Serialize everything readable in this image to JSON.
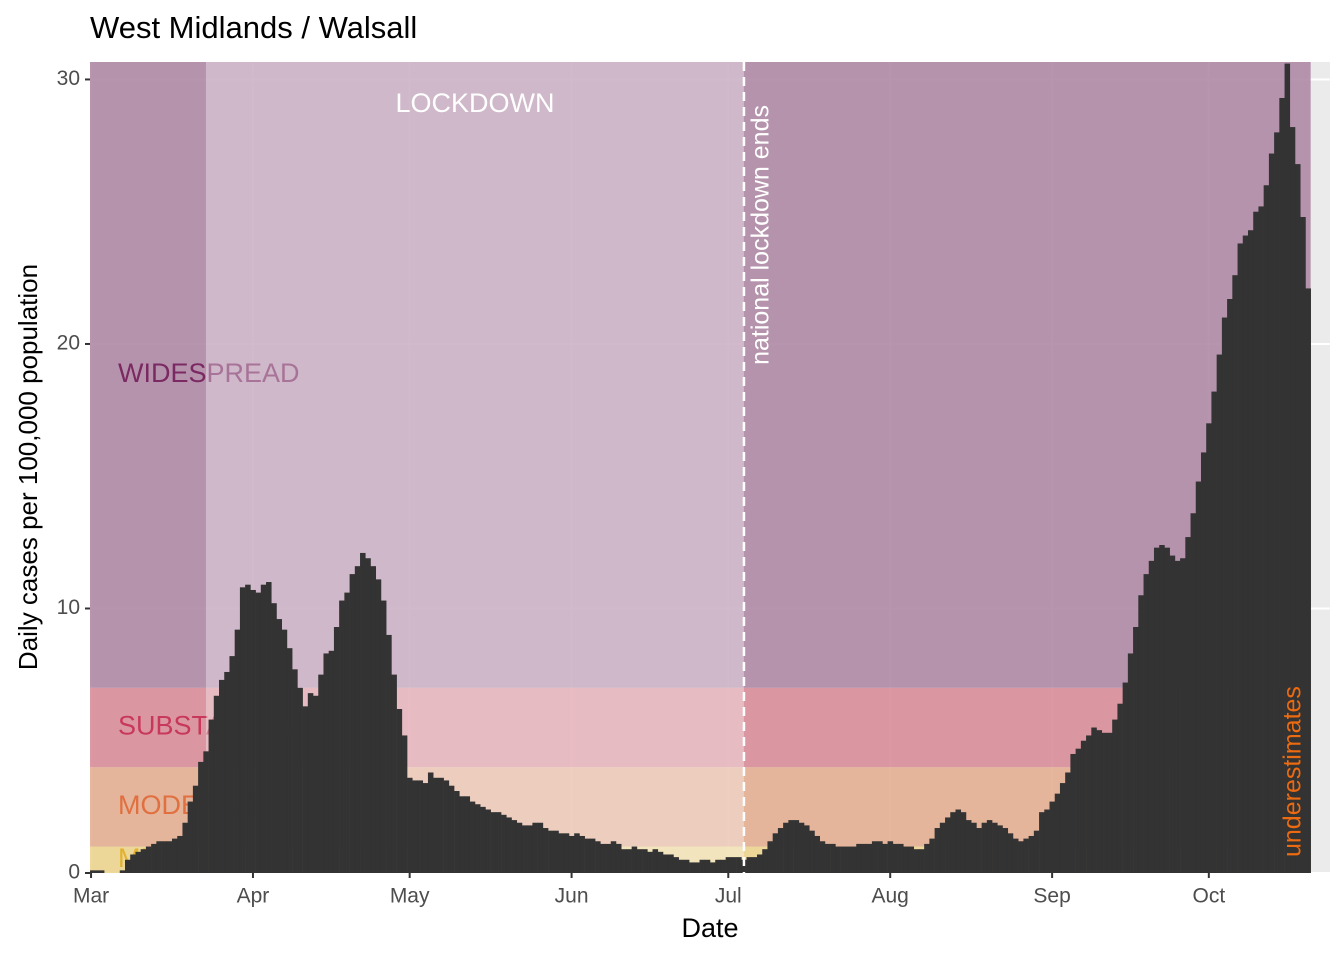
{
  "chart_data": {
    "type": "bar",
    "title": "West Midlands / Walsall",
    "x_label": "Date",
    "y_label": "Daily cases per 100,000 population",
    "color": "#333333",
    "x": [
      0,
      1,
      2,
      3,
      4,
      5,
      6,
      7,
      8,
      9,
      10,
      11,
      12,
      13,
      14,
      15,
      16,
      17,
      18,
      19,
      20,
      21,
      22,
      23,
      24,
      25,
      26,
      27,
      28,
      29,
      30,
      31,
      32,
      33,
      34,
      35,
      36,
      37,
      38,
      39,
      40,
      41,
      42,
      43,
      44,
      45,
      46,
      47,
      48,
      49,
      50,
      51,
      52,
      53,
      54,
      55,
      56,
      57,
      58,
      59,
      60,
      61,
      62,
      63,
      64,
      65,
      66,
      67,
      68,
      69,
      70,
      71,
      72,
      73,
      74,
      75,
      76,
      77,
      78,
      79,
      80,
      81,
      82,
      83,
      84,
      85,
      86,
      87,
      88,
      89,
      90,
      91,
      92,
      93,
      94,
      95,
      96,
      97,
      98,
      99,
      100,
      101,
      102,
      103,
      104,
      105,
      106,
      107,
      108,
      109,
      110,
      111,
      112,
      113,
      114,
      115,
      116,
      117,
      118,
      119,
      120,
      121,
      122,
      123,
      124,
      125,
      126,
      127,
      128,
      129,
      130,
      131,
      132,
      133,
      134,
      135,
      136,
      137,
      138,
      139,
      140,
      141,
      142,
      143,
      144,
      145,
      146,
      147,
      148,
      149,
      150,
      151,
      152,
      153,
      154,
      155,
      156,
      157,
      158,
      159,
      160,
      161,
      162,
      163,
      164,
      165,
      166,
      167,
      168,
      169,
      170,
      171,
      172,
      173,
      174,
      175,
      176,
      177,
      178,
      179,
      180,
      181,
      182,
      183,
      184,
      185,
      186,
      187,
      188,
      189,
      190,
      191,
      192,
      193,
      194,
      195,
      196,
      197,
      198,
      199,
      200,
      201,
      202,
      203,
      204,
      205,
      206,
      207,
      208,
      209,
      210,
      211,
      212,
      213,
      214,
      215,
      216,
      217,
      218,
      219,
      220,
      221,
      222,
      223,
      224,
      225,
      226,
      227,
      228,
      229,
      230,
      231,
      232,
      233
    ],
    "values": [
      0.1,
      0.1,
      0.1,
      0,
      0,
      0,
      0.1,
      0.5,
      0.7,
      0.8,
      0.9,
      1.0,
      1.1,
      1.2,
      1.2,
      1.2,
      1.3,
      1.4,
      1.9,
      2.7,
      3.3,
      4.2,
      4.6,
      5.8,
      6.7,
      7.3,
      7.6,
      8.2,
      9.2,
      10.8,
      10.9,
      10.7,
      10.6,
      10.9,
      11.0,
      10.2,
      9.6,
      9.2,
      8.5,
      7.7,
      7.0,
      6.3,
      6.8,
      6.7,
      7.5,
      8.3,
      8.4,
      9.3,
      10.3,
      10.6,
      11.3,
      11.6,
      12.1,
      11.9,
      11.6,
      11.1,
      10.3,
      9.0,
      7.5,
      6.2,
      5.2,
      3.6,
      3.5,
      3.5,
      3.4,
      3.8,
      3.6,
      3.6,
      3.5,
      3.3,
      3.1,
      2.9,
      2.9,
      2.7,
      2.6,
      2.5,
      2.4,
      2.3,
      2.3,
      2.2,
      2.1,
      2.0,
      1.9,
      1.8,
      1.8,
      1.9,
      1.9,
      1.7,
      1.6,
      1.6,
      1.5,
      1.5,
      1.4,
      1.5,
      1.4,
      1.3,
      1.3,
      1.2,
      1.1,
      1.1,
      1.2,
      1.1,
      0.9,
      0.9,
      1.0,
      0.9,
      0.9,
      0.8,
      0.9,
      0.8,
      0.7,
      0.7,
      0.6,
      0.5,
      0.5,
      0.4,
      0.4,
      0.5,
      0.5,
      0.4,
      0.5,
      0.5,
      0.6,
      0.6,
      0.6,
      0.5,
      0.6,
      0.6,
      0.7,
      0.9,
      1.2,
      1.5,
      1.7,
      1.9,
      2.0,
      2.0,
      1.9,
      1.8,
      1.6,
      1.4,
      1.2,
      1.1,
      1.1,
      1.0,
      1.0,
      1.0,
      1.0,
      1.1,
      1.1,
      1.1,
      1.2,
      1.2,
      1.1,
      1.2,
      1.1,
      1.1,
      1.0,
      1.0,
      0.9,
      0.9,
      1.1,
      1.3,
      1.7,
      1.9,
      2.1,
      2.3,
      2.4,
      2.3,
      2.0,
      1.9,
      1.7,
      1.9,
      2.0,
      1.9,
      1.8,
      1.7,
      1.5,
      1.3,
      1.2,
      1.3,
      1.4,
      1.6,
      2.3,
      2.4,
      2.7,
      3.0,
      3.4,
      3.8,
      4.5,
      4.7,
      5.0,
      5.2,
      5.5,
      5.4,
      5.3,
      5.3,
      5.8,
      6.4,
      7.2,
      8.3,
      9.3,
      10.5,
      11.3,
      11.8,
      12.3,
      12.4,
      12.3,
      12.0,
      11.8,
      11.9,
      12.7,
      13.6,
      14.8,
      15.9,
      17.0,
      18.2,
      19.6,
      21.0,
      21.7,
      22.6,
      23.8,
      24.1,
      24.3,
      25.0,
      25.2,
      26.0,
      27.2,
      28.0,
      29.3,
      30.6,
      28.2,
      26.8,
      24.8,
      22.1
    ],
    "xlim": [
      -0.2,
      237.2
    ],
    "ylim": [
      0,
      30.66
    ],
    "xticks": [
      {
        "value": 0,
        "label": "Mar"
      },
      {
        "value": 31,
        "label": "Apr"
      },
      {
        "value": 61,
        "label": "May"
      },
      {
        "value": 92,
        "label": "Jun"
      },
      {
        "value": 122,
        "label": "Jul"
      },
      {
        "value": 153,
        "label": "Aug"
      },
      {
        "value": 184,
        "label": "Sep"
      },
      {
        "value": 214,
        "label": "Oct"
      }
    ],
    "yticks": [
      0,
      10,
      20,
      30
    ],
    "grid": true,
    "bands": [
      {
        "label": "MINIMAL",
        "from": 0,
        "to": 1,
        "color": "#ecd48f",
        "text_color": "#e2b22e"
      },
      {
        "label": "MODERATE",
        "from": 1,
        "to": 4,
        "color": "#e3ae92",
        "text_color": "#e07040"
      },
      {
        "label": "SUBSTANTIAL",
        "from": 4,
        "to": 7,
        "color": "#d98e99",
        "text_color": "#c8385a"
      },
      {
        "label": "WIDESPREAD",
        "from": 7,
        "color": "#b08aa5",
        "text_color": "#7a2962"
      }
    ],
    "lockdown": {
      "label": "LOCKDOWN",
      "start": 22,
      "end": 125,
      "end_label": "national lockdown ends"
    },
    "note": {
      "text": "underestimates",
      "color": "#ec6a10"
    }
  }
}
